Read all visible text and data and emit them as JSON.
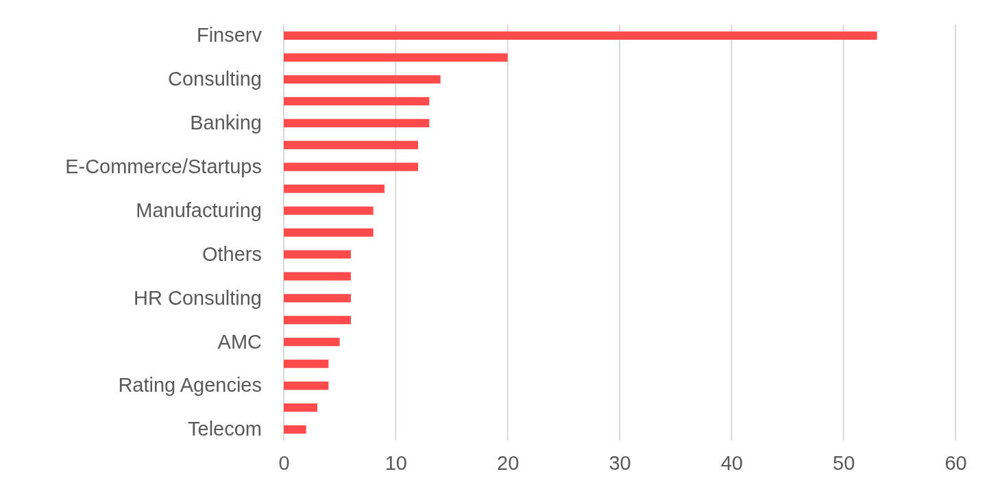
{
  "chart_data": {
    "type": "bar",
    "orientation": "horizontal",
    "categories": [
      "Finserv",
      null,
      "Consulting",
      null,
      "Banking",
      null,
      "E-Commerce/Startups",
      null,
      "Manufacturing",
      null,
      "Others",
      null,
      "HR Consulting",
      null,
      "AMC",
      null,
      "Rating Agencies",
      null,
      "Telecom"
    ],
    "values": [
      53,
      20,
      14,
      13,
      13,
      12,
      12,
      9,
      8,
      8,
      6,
      6,
      6,
      6,
      5,
      4,
      4,
      3,
      2
    ],
    "color": "#ff4b4b",
    "xlim": [
      0,
      60
    ],
    "xticks": [
      0,
      10,
      20,
      30,
      40,
      50,
      60
    ],
    "grid": "x"
  }
}
